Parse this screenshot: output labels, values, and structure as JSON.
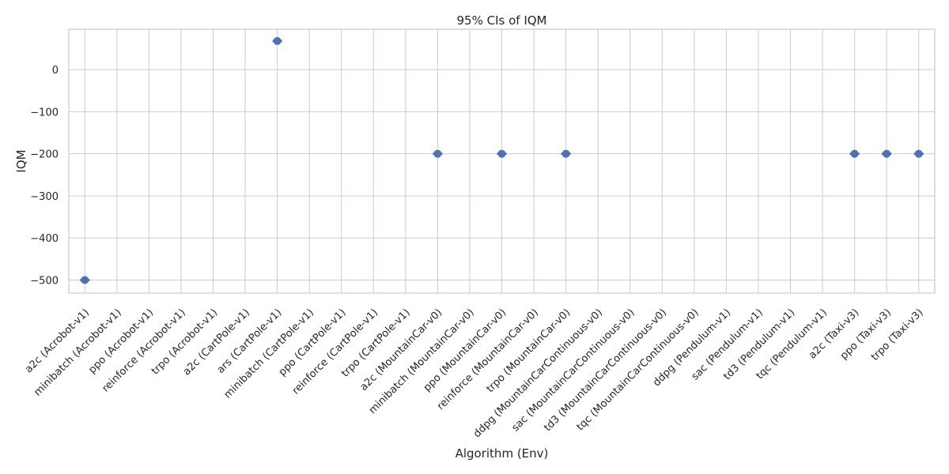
{
  "chart_data": {
    "type": "scatter",
    "title": "95% CIs of IQM",
    "xlabel": "Algorithm (Env)",
    "ylabel": "IQM",
    "ylim": [
      -531,
      96
    ],
    "yticks": [
      0,
      -100,
      -200,
      -300,
      -400,
      -500
    ],
    "ytick_labels": [
      "0",
      "−100",
      "−200",
      "−300",
      "−400",
      "−500"
    ],
    "grid": true,
    "marker_color": "#4c72b0",
    "categories": [
      "a2c (Acrobot-v1)",
      "minibatch (Acrobot-v1)",
      "ppo (Acrobot-v1)",
      "reinforce (Acrobot-v1)",
      "trpo (Acrobot-v1)",
      "a2c (CartPole-v1)",
      "ars (CartPole-v1)",
      "minibatch (CartPole-v1)",
      "ppo (CartPole-v1)",
      "reinforce (CartPole-v1)",
      "trpo (CartPole-v1)",
      "a2c (MountainCar-v0)",
      "minibatch (MountainCar-v0)",
      "ppo (MountainCar-v0)",
      "reinforce (MountainCar-v0)",
      "trpo (MountainCar-v0)",
      "ddpg (MountainCarContinuous-v0)",
      "sac (MountainCarContinuous-v0)",
      "td3 (MountainCarContinuous-v0)",
      "tqc (MountainCarContinuous-v0)",
      "ddpg (Pendulum-v1)",
      "sac (Pendulum-v1)",
      "td3 (Pendulum-v1)",
      "tqc (Pendulum-v1)",
      "a2c (Taxi-v3)",
      "ppo (Taxi-v3)",
      "trpo (Taxi-v3)"
    ],
    "points": [
      {
        "x": "a2c (Acrobot-v1)",
        "y": -500
      },
      {
        "x": "ars (CartPole-v1)",
        "y": 68
      },
      {
        "x": "a2c (MountainCar-v0)",
        "y": -200
      },
      {
        "x": "ppo (MountainCar-v0)",
        "y": -200
      },
      {
        "x": "trpo (MountainCar-v0)",
        "y": -200
      },
      {
        "x": "a2c (Taxi-v3)",
        "y": -200
      },
      {
        "x": "ppo (Taxi-v3)",
        "y": -200
      },
      {
        "x": "trpo (Taxi-v3)",
        "y": -200
      }
    ]
  }
}
